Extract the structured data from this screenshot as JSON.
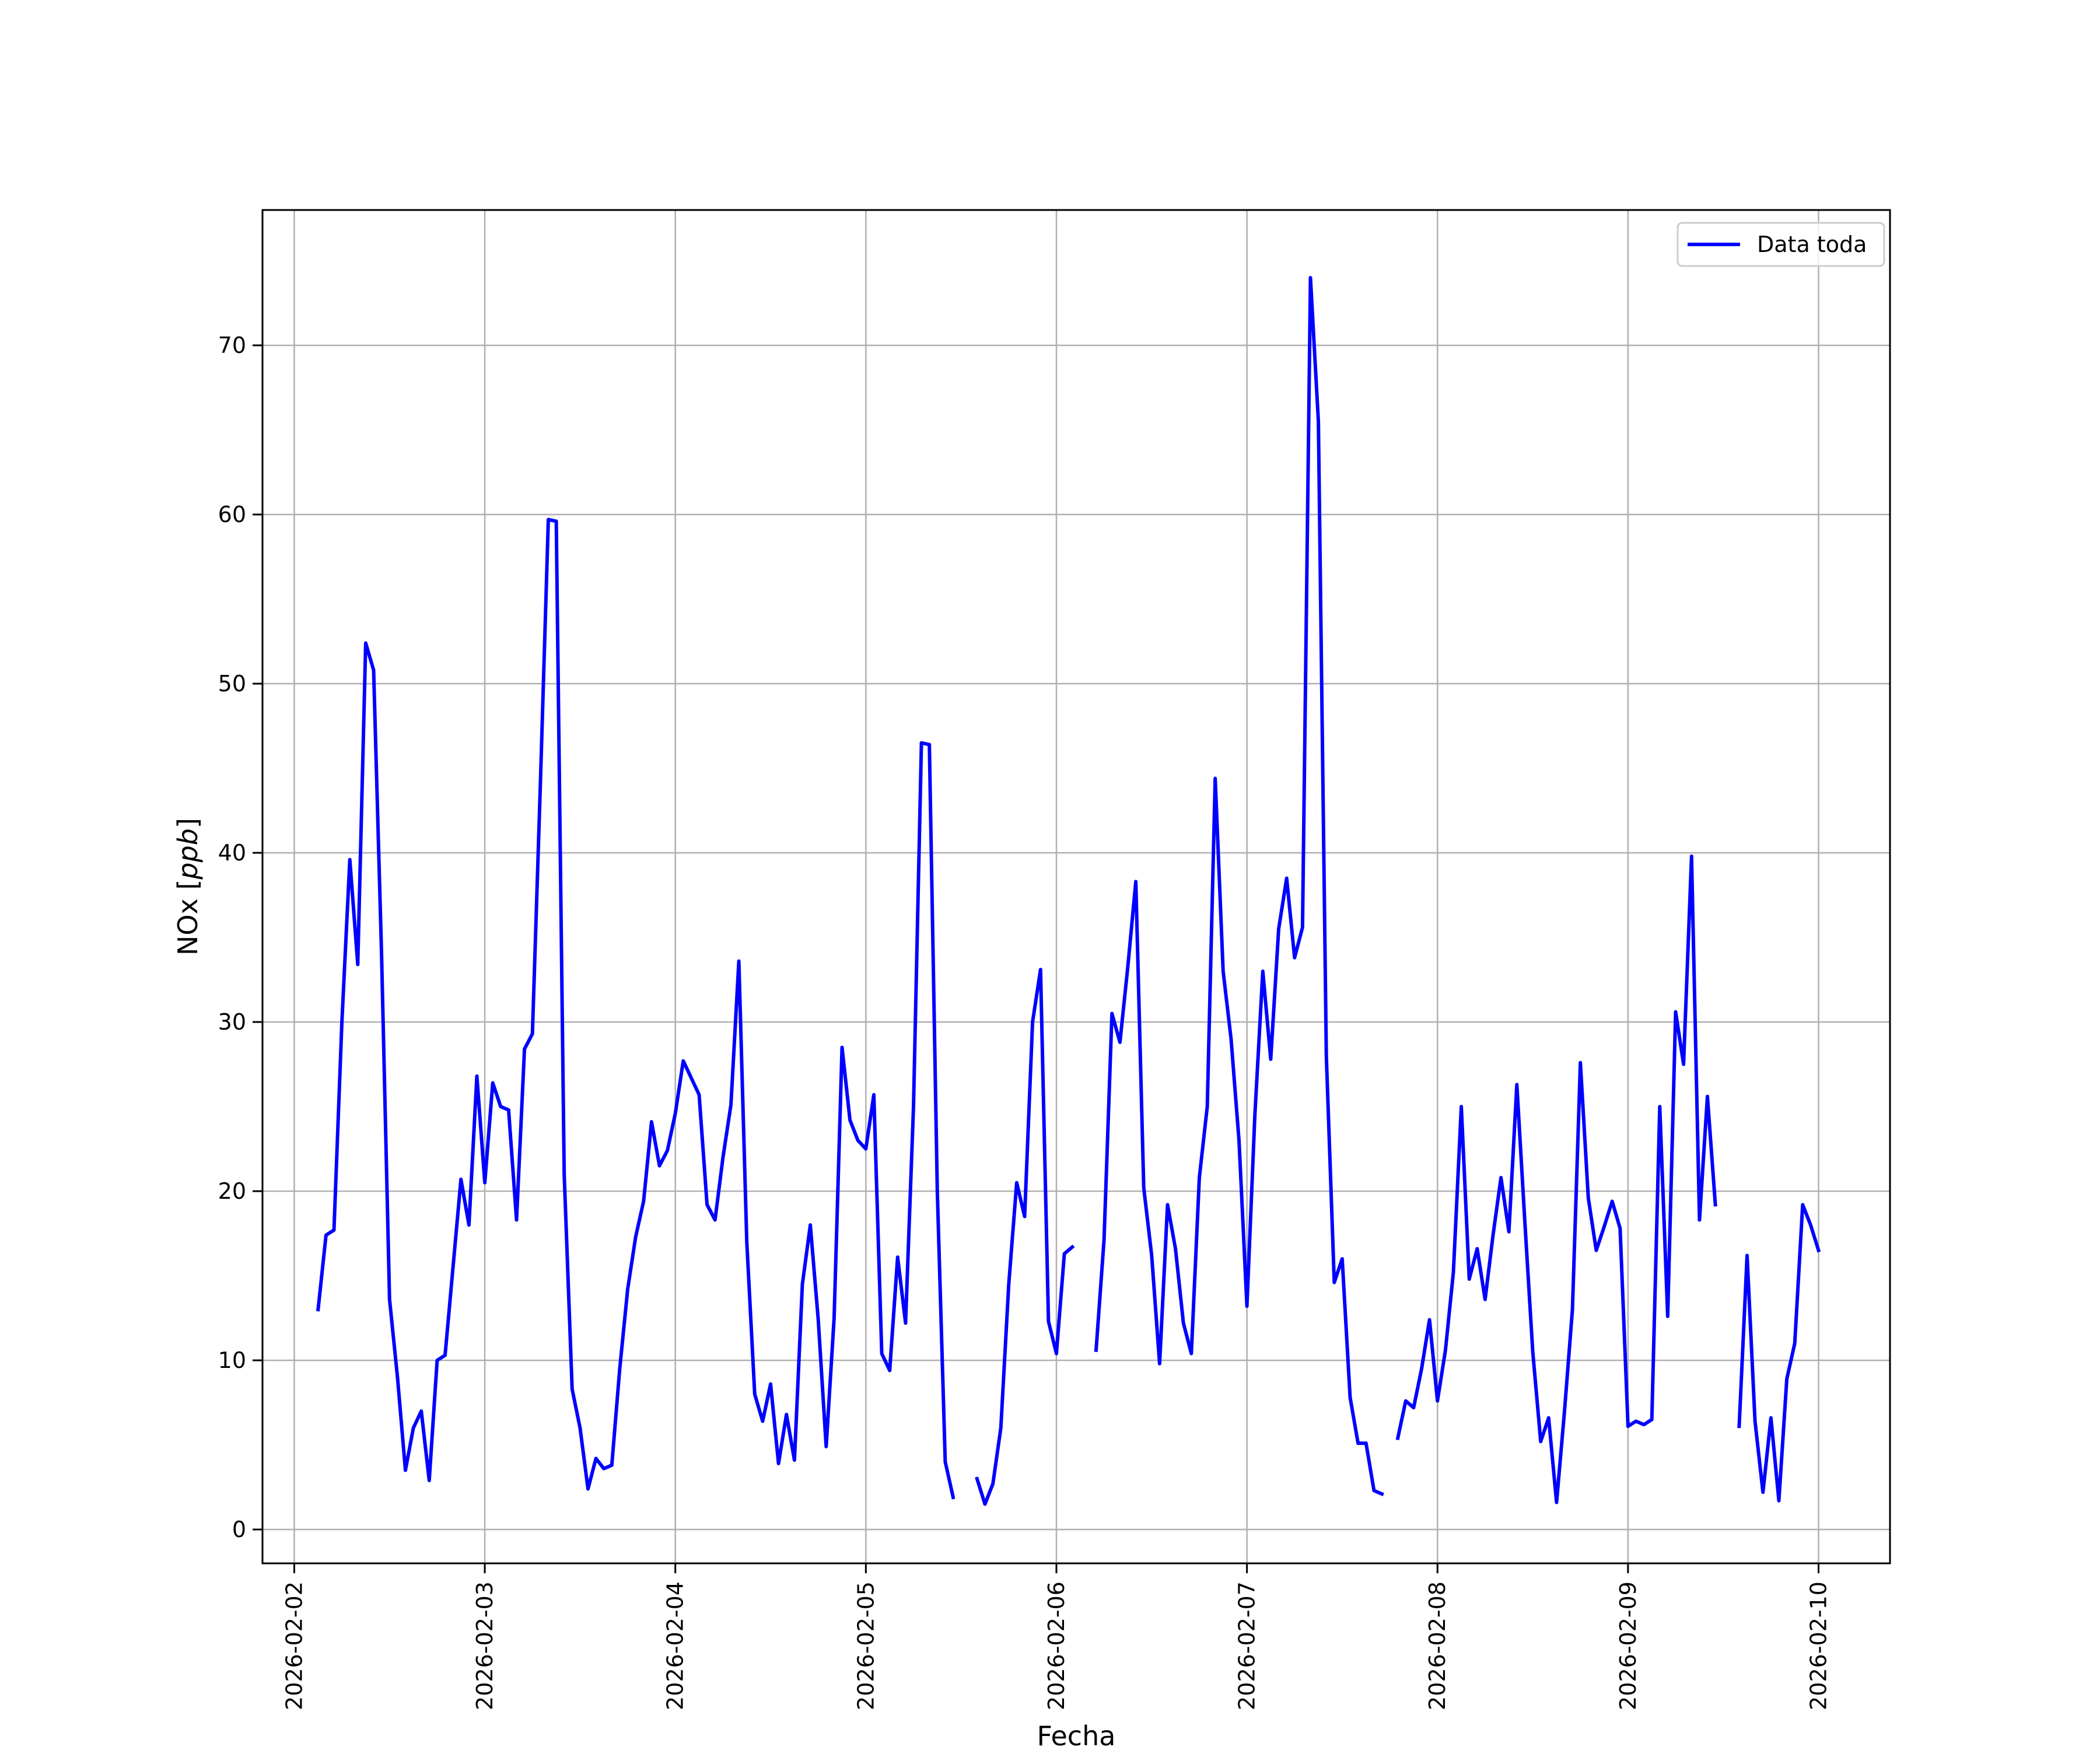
{
  "chart_data": {
    "type": "line",
    "xlabel": "Fecha",
    "ylabel": "NOx [ppb]",
    "ylabel_parts": {
      "main": "NOx ",
      "open": "[",
      "unit": "ppb",
      "close": "]"
    },
    "xlim": [
      "2026-02-01T20:00",
      "2026-02-10T09:00"
    ],
    "ylim": [
      -2,
      78
    ],
    "x_ticks": [
      "2026-02-02",
      "2026-02-03",
      "2026-02-04",
      "2026-02-05",
      "2026-02-06",
      "2026-02-07",
      "2026-02-08",
      "2026-02-09",
      "2026-02-10"
    ],
    "y_ticks": [
      0,
      10,
      20,
      30,
      40,
      50,
      60,
      70
    ],
    "grid": true,
    "legend_position": "upper right",
    "series": [
      {
        "name": "Data toda",
        "color": "#0000ff",
        "points": [
          [
            "2026-02-02T03:00",
            13.0
          ],
          [
            "2026-02-02T04:00",
            17.4
          ],
          [
            "2026-02-02T05:00",
            17.7
          ],
          [
            "2026-02-02T06:00",
            30.0
          ],
          [
            "2026-02-02T07:00",
            39.6
          ],
          [
            "2026-02-02T08:00",
            33.4
          ],
          [
            "2026-02-02T09:00",
            52.4
          ],
          [
            "2026-02-02T10:00",
            50.8
          ],
          [
            "2026-02-02T11:00",
            34.0
          ],
          [
            "2026-02-02T12:00",
            13.6
          ],
          [
            "2026-02-02T13:00",
            9.0
          ],
          [
            "2026-02-02T14:00",
            3.5
          ],
          [
            "2026-02-02T15:00",
            6.0
          ],
          [
            "2026-02-02T16:00",
            7.0
          ],
          [
            "2026-02-02T17:00",
            2.9
          ],
          [
            "2026-02-02T18:00",
            10.0
          ],
          [
            "2026-02-02T19:00",
            10.3
          ],
          [
            "2026-02-02T20:00",
            15.5
          ],
          [
            "2026-02-02T21:00",
            20.7
          ],
          [
            "2026-02-02T22:00",
            18.0
          ],
          [
            "2026-02-02T23:00",
            26.8
          ],
          [
            "2026-02-03T00:00",
            20.5
          ],
          [
            "2026-02-03T01:00",
            26.4
          ],
          [
            "2026-02-03T02:00",
            25.0
          ],
          [
            "2026-02-03T03:00",
            24.8
          ],
          [
            "2026-02-03T04:00",
            18.3
          ],
          [
            "2026-02-03T05:00",
            28.4
          ],
          [
            "2026-02-03T06:00",
            29.3
          ],
          [
            "2026-02-03T07:00",
            44.0
          ],
          [
            "2026-02-03T08:00",
            59.7
          ],
          [
            "2026-02-03T09:00",
            59.6
          ],
          [
            "2026-02-03T10:00",
            21.0
          ],
          [
            "2026-02-03T11:00",
            8.3
          ],
          [
            "2026-02-03T12:00",
            6.0
          ],
          [
            "2026-02-03T13:00",
            2.4
          ],
          [
            "2026-02-03T14:00",
            4.2
          ],
          [
            "2026-02-03T15:00",
            3.6
          ],
          [
            "2026-02-03T16:00",
            3.8
          ],
          [
            "2026-02-03T17:00",
            9.5
          ],
          [
            "2026-02-03T18:00",
            14.2
          ],
          [
            "2026-02-03T19:00",
            17.3
          ],
          [
            "2026-02-03T20:00",
            19.4
          ],
          [
            "2026-02-03T21:00",
            24.1
          ],
          [
            "2026-02-03T22:00",
            21.5
          ],
          [
            "2026-02-03T23:00",
            22.4
          ],
          [
            "2026-02-04T00:00",
            24.6
          ],
          [
            "2026-02-04T01:00",
            27.7
          ],
          [
            "2026-02-04T02:00",
            26.7
          ],
          [
            "2026-02-04T03:00",
            25.7
          ],
          [
            "2026-02-04T04:00",
            19.2
          ],
          [
            "2026-02-04T05:00",
            18.3
          ],
          [
            "2026-02-04T06:00",
            22.0
          ],
          [
            "2026-02-04T07:00",
            25.1
          ],
          [
            "2026-02-04T08:00",
            33.6
          ],
          [
            "2026-02-04T09:00",
            17.0
          ],
          [
            "2026-02-04T10:00",
            8.0
          ],
          [
            "2026-02-04T11:00",
            6.4
          ],
          [
            "2026-02-04T12:00",
            8.6
          ],
          [
            "2026-02-04T13:00",
            3.9
          ],
          [
            "2026-02-04T14:00",
            6.8
          ],
          [
            "2026-02-04T15:00",
            4.1
          ],
          [
            "2026-02-04T16:00",
            14.5
          ],
          [
            "2026-02-04T17:00",
            18.0
          ],
          [
            "2026-02-04T18:00",
            12.4
          ],
          [
            "2026-02-04T19:00",
            4.9
          ],
          [
            "2026-02-04T20:00",
            12.5
          ],
          [
            "2026-02-04T21:00",
            28.5
          ],
          [
            "2026-02-04T22:00",
            24.2
          ],
          [
            "2026-02-04T23:00",
            23.0
          ],
          [
            "2026-02-05T00:00",
            22.5
          ],
          [
            "2026-02-05T01:00",
            25.7
          ],
          [
            "2026-02-05T02:00",
            10.4
          ],
          [
            "2026-02-05T03:00",
            9.4
          ],
          [
            "2026-02-05T04:00",
            16.1
          ],
          [
            "2026-02-05T05:00",
            12.2
          ],
          [
            "2026-02-05T06:00",
            25.0
          ],
          [
            "2026-02-05T07:00",
            46.5
          ],
          [
            "2026-02-05T08:00",
            46.4
          ],
          [
            "2026-02-05T09:00",
            20.0
          ],
          [
            "2026-02-05T10:00",
            4.0
          ],
          [
            "2026-02-05T11:00",
            1.9
          ],
          null,
          [
            "2026-02-05T14:00",
            3.0
          ],
          [
            "2026-02-05T15:00",
            1.5
          ],
          [
            "2026-02-05T16:00",
            2.7
          ],
          [
            "2026-02-05T17:00",
            6.0
          ],
          [
            "2026-02-05T18:00",
            14.5
          ],
          [
            "2026-02-05T19:00",
            20.5
          ],
          [
            "2026-02-05T20:00",
            18.5
          ],
          [
            "2026-02-05T21:00",
            30.0
          ],
          [
            "2026-02-05T22:00",
            33.1
          ],
          [
            "2026-02-05T23:00",
            12.3
          ],
          [
            "2026-02-06T00:00",
            10.4
          ],
          [
            "2026-02-06T01:00",
            16.3
          ],
          [
            "2026-02-06T02:00",
            16.7
          ],
          null,
          [
            "2026-02-06T05:00",
            10.6
          ],
          [
            "2026-02-06T06:00",
            17.1
          ],
          [
            "2026-02-06T07:00",
            30.5
          ],
          [
            "2026-02-06T08:00",
            28.8
          ],
          [
            "2026-02-06T09:00",
            33.3
          ],
          [
            "2026-02-06T10:00",
            38.3
          ],
          [
            "2026-02-06T11:00",
            20.2
          ],
          [
            "2026-02-06T12:00",
            16.2
          ],
          [
            "2026-02-06T13:00",
            9.8
          ],
          [
            "2026-02-06T14:00",
            19.2
          ],
          [
            "2026-02-06T15:00",
            16.6
          ],
          [
            "2026-02-06T16:00",
            12.2
          ],
          [
            "2026-02-06T17:00",
            10.4
          ],
          [
            "2026-02-06T18:00",
            20.8
          ],
          [
            "2026-02-06T19:00",
            25.0
          ],
          [
            "2026-02-06T20:00",
            44.4
          ],
          [
            "2026-02-06T21:00",
            33.0
          ],
          [
            "2026-02-06T22:00",
            29.0
          ],
          [
            "2026-02-06T23:00",
            23.0
          ],
          [
            "2026-02-07T00:00",
            13.2
          ],
          [
            "2026-02-07T01:00",
            24.5
          ],
          [
            "2026-02-07T02:00",
            33.0
          ],
          [
            "2026-02-07T03:00",
            27.8
          ],
          [
            "2026-02-07T04:00",
            35.5
          ],
          [
            "2026-02-07T05:00",
            38.5
          ],
          [
            "2026-02-07T06:00",
            33.8
          ],
          [
            "2026-02-07T07:00",
            35.6
          ],
          [
            "2026-02-07T08:00",
            74.0
          ],
          [
            "2026-02-07T09:00",
            65.5
          ],
          [
            "2026-02-07T10:00",
            28.0
          ],
          [
            "2026-02-07T11:00",
            14.6
          ],
          [
            "2026-02-07T12:00",
            16.0
          ],
          [
            "2026-02-07T13:00",
            7.8
          ],
          [
            "2026-02-07T14:00",
            5.1
          ],
          [
            "2026-02-07T15:00",
            5.1
          ],
          [
            "2026-02-07T16:00",
            2.3
          ],
          [
            "2026-02-07T17:00",
            2.1
          ],
          null,
          [
            "2026-02-07T19:00",
            5.4
          ],
          [
            "2026-02-07T20:00",
            7.6
          ],
          [
            "2026-02-07T21:00",
            7.2
          ],
          [
            "2026-02-07T22:00",
            9.5
          ],
          [
            "2026-02-07T23:00",
            12.4
          ],
          [
            "2026-02-08T00:00",
            7.6
          ],
          [
            "2026-02-08T01:00",
            10.6
          ],
          [
            "2026-02-08T02:00",
            15.2
          ],
          [
            "2026-02-08T03:00",
            25.0
          ],
          [
            "2026-02-08T04:00",
            14.8
          ],
          [
            "2026-02-08T05:00",
            16.6
          ],
          [
            "2026-02-08T06:00",
            13.6
          ],
          [
            "2026-02-08T07:00",
            17.4
          ],
          [
            "2026-02-08T08:00",
            20.8
          ],
          [
            "2026-02-08T09:00",
            17.6
          ],
          [
            "2026-02-08T10:00",
            26.3
          ],
          [
            "2026-02-08T11:00",
            18.2
          ],
          [
            "2026-02-08T12:00",
            10.5
          ],
          [
            "2026-02-08T13:00",
            5.2
          ],
          [
            "2026-02-08T14:00",
            6.6
          ],
          [
            "2026-02-08T15:00",
            1.6
          ],
          [
            "2026-02-08T16:00",
            7.0
          ],
          [
            "2026-02-08T17:00",
            13.0
          ],
          [
            "2026-02-08T18:00",
            27.6
          ],
          [
            "2026-02-08T19:00",
            19.6
          ],
          [
            "2026-02-08T20:00",
            16.5
          ],
          [
            "2026-02-08T21:00",
            17.9
          ],
          [
            "2026-02-08T22:00",
            19.4
          ],
          [
            "2026-02-08T23:00",
            17.8
          ],
          [
            "2026-02-09T00:00",
            6.1
          ],
          [
            "2026-02-09T01:00",
            6.4
          ],
          [
            "2026-02-09T02:00",
            6.2
          ],
          [
            "2026-02-09T03:00",
            6.5
          ],
          [
            "2026-02-09T04:00",
            25.0
          ],
          [
            "2026-02-09T05:00",
            12.6
          ],
          [
            "2026-02-09T06:00",
            30.6
          ],
          [
            "2026-02-09T07:00",
            27.5
          ],
          [
            "2026-02-09T08:00",
            39.8
          ],
          [
            "2026-02-09T09:00",
            18.3
          ],
          [
            "2026-02-09T10:00",
            25.6
          ],
          [
            "2026-02-09T11:00",
            19.2
          ],
          null,
          [
            "2026-02-09T14:00",
            6.1
          ],
          [
            "2026-02-09T15:00",
            16.2
          ],
          [
            "2026-02-09T16:00",
            6.4
          ],
          [
            "2026-02-09T17:00",
            2.2
          ],
          [
            "2026-02-09T18:00",
            6.6
          ],
          [
            "2026-02-09T19:00",
            1.7
          ],
          [
            "2026-02-09T20:00",
            8.9
          ],
          [
            "2026-02-09T21:00",
            11.0
          ],
          [
            "2026-02-09T22:00",
            19.2
          ],
          [
            "2026-02-09T23:00",
            18.0
          ],
          [
            "2026-02-10T00:00",
            16.5
          ]
        ]
      }
    ]
  }
}
